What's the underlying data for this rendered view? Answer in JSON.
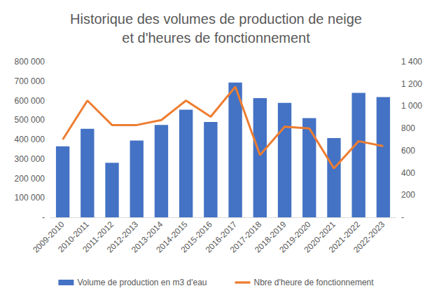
{
  "chart_data": {
    "type": "bar",
    "title": "Historique des volumes de production de neige\net d'heures de fonctionnement",
    "categories": [
      "2009-2010",
      "2010-2011",
      "2011-2012",
      "2012-2013",
      "2013-2014",
      "2014-2015",
      "2015-2016",
      "2016-2017",
      "2017-2018",
      "2018-2019",
      "2019-2020",
      "2020-2021",
      "2021-2022",
      "2022-2023"
    ],
    "series": [
      {
        "name": "Volume de production en m3 d'eau",
        "type": "bar",
        "color": "#4472c4",
        "axis": "y",
        "values": [
          365000,
          455000,
          280000,
          395000,
          475000,
          553000,
          490000,
          693000,
          613000,
          588000,
          510000,
          407000,
          640000,
          618000
        ]
      },
      {
        "name": "Nbre d'heure de fonctionnement",
        "type": "line",
        "color": "#ed7d31",
        "axis": "y2",
        "marker": "none",
        "values": [
          700,
          1050,
          830,
          830,
          875,
          1050,
          905,
          1175,
          560,
          815,
          800,
          440,
          685,
          640
        ]
      }
    ],
    "ylim": [
      0,
      800000
    ],
    "yticks": [
      {
        "value": 0,
        "label": "-"
      },
      {
        "value": 100000,
        "label": "100 000"
      },
      {
        "value": 200000,
        "label": "200 000"
      },
      {
        "value": 300000,
        "label": "300 000"
      },
      {
        "value": 400000,
        "label": "400 000"
      },
      {
        "value": 500000,
        "label": "500 000"
      },
      {
        "value": 600000,
        "label": "600 000"
      },
      {
        "value": 700000,
        "label": "700 000"
      },
      {
        "value": 800000,
        "label": "800 000"
      }
    ],
    "y2lim": [
      0,
      1400
    ],
    "y2ticks": [
      {
        "value": 0,
        "label": "-"
      },
      200,
      400,
      600,
      800,
      {
        "value": 1000,
        "label": "1 000"
      },
      {
        "value": 1200,
        "label": "1 200"
      },
      {
        "value": 1400,
        "label": "1 400"
      }
    ],
    "grid": false,
    "legend": "bottom"
  }
}
